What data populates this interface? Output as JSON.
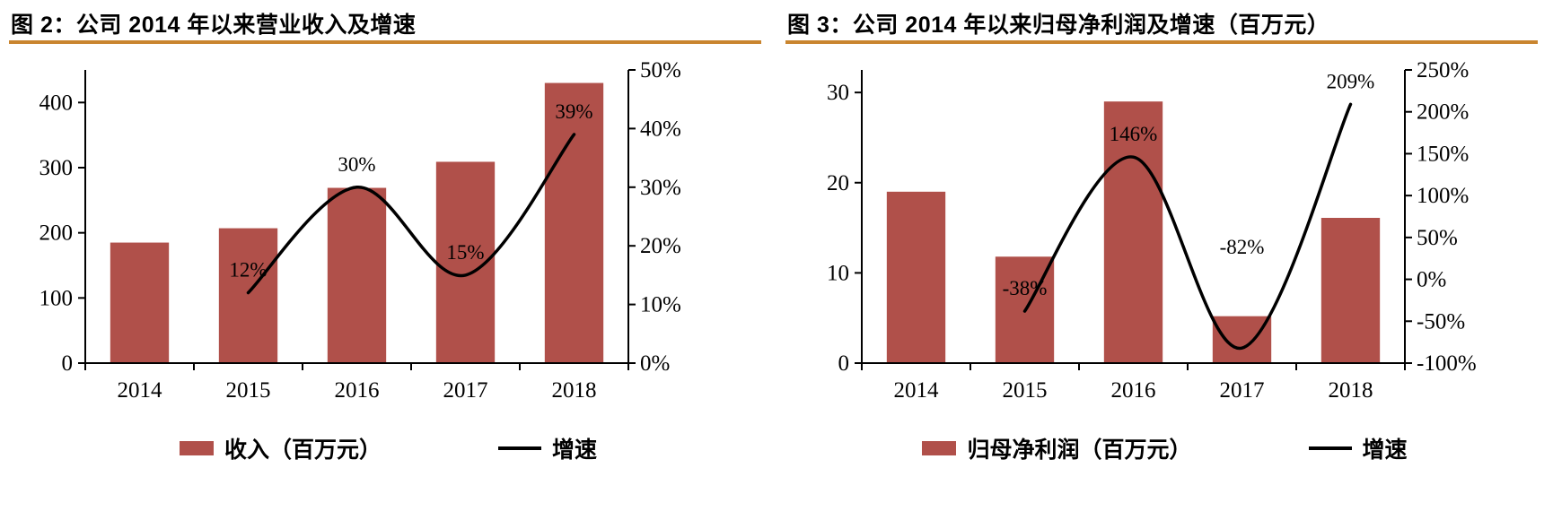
{
  "page": {
    "background": "#ffffff"
  },
  "style": {
    "bar_color": "#b0504a",
    "line_color": "#000000",
    "title_rule_color": "#c9852f",
    "axis_color": "#000000",
    "text_color": "#000000"
  },
  "chart_data": [
    {
      "type": "bar",
      "subtype": "bar-line-combo",
      "title": "图 2：公司 2014 年以来营业收入及增速",
      "categories": [
        "2014",
        "2015",
        "2016",
        "2017",
        "2018"
      ],
      "series": [
        {
          "name": "收入（百万元）",
          "type": "bar",
          "axis": "left",
          "color": "#b0504a",
          "values": [
            185,
            207,
            269,
            309,
            430
          ]
        },
        {
          "name": "增速",
          "type": "line",
          "axis": "right",
          "color": "#000000",
          "values": [
            null,
            12,
            30,
            15,
            39
          ],
          "point_labels": [
            "",
            "12%",
            "30%",
            "15%",
            "39%"
          ]
        }
      ],
      "left_axis": {
        "min": 0,
        "max": 450,
        "ticks": [
          {
            "value": 0,
            "label": "0"
          },
          {
            "value": 100,
            "label": "100"
          },
          {
            "value": 200,
            "label": "200"
          },
          {
            "value": 300,
            "label": "300"
          },
          {
            "value": 400,
            "label": "400"
          }
        ]
      },
      "right_axis": {
        "min": 0,
        "max": 50,
        "ticks": [
          {
            "value": 0,
            "label": "0%"
          },
          {
            "value": 10,
            "label": "10%"
          },
          {
            "value": 20,
            "label": "20%"
          },
          {
            "value": 30,
            "label": "30%"
          },
          {
            "value": 40,
            "label": "40%"
          },
          {
            "value": 50,
            "label": "50%"
          }
        ]
      },
      "legend": [
        {
          "swatch": "bar",
          "label": "收入（百万元）"
        },
        {
          "swatch": "line",
          "label": "增速"
        }
      ],
      "label_offsets": [],
      "grid": false,
      "legend_position": "bottom"
    },
    {
      "type": "bar",
      "subtype": "bar-line-combo",
      "title": "图 3：公司 2014 年以来归母净利润及增速（百万元）",
      "categories": [
        "2014",
        "2015",
        "2016",
        "2017",
        "2018"
      ],
      "series": [
        {
          "name": "归母净利润（百万元）",
          "type": "bar",
          "axis": "left",
          "color": "#b0504a",
          "values": [
            19,
            11.8,
            29,
            5.2,
            16.1
          ]
        },
        {
          "name": "增速",
          "type": "line",
          "axis": "right",
          "color": "#000000",
          "values": [
            null,
            -38,
            146,
            -82,
            209
          ],
          "point_labels": [
            "",
            "-38%",
            "146%",
            "-82%",
            "209%"
          ]
        }
      ],
      "left_axis": {
        "min": 0,
        "max": 32.5,
        "ticks": [
          {
            "value": 0,
            "label": "0"
          },
          {
            "value": 10,
            "label": "10"
          },
          {
            "value": 20,
            "label": "20"
          },
          {
            "value": 30,
            "label": "30"
          }
        ]
      },
      "right_axis": {
        "min": -100,
        "max": 250,
        "ticks": [
          {
            "value": -100,
            "label": "-100%"
          },
          {
            "value": -50,
            "label": "-50%"
          },
          {
            "value": 0,
            "label": "0%"
          },
          {
            "value": 50,
            "label": "50%"
          },
          {
            "value": 100,
            "label": "100%"
          },
          {
            "value": 150,
            "label": "150%"
          },
          {
            "value": 200,
            "label": "200%"
          },
          {
            "value": 250,
            "label": "250%"
          }
        ]
      },
      "legend": [
        {
          "swatch": "bar",
          "label": "归母净利润（百万元）"
        },
        {
          "swatch": "line",
          "label": "增速"
        }
      ],
      "label_offsets": [
        {
          "index": 3,
          "dy": -105
        }
      ],
      "grid": false,
      "legend_position": "bottom"
    }
  ]
}
